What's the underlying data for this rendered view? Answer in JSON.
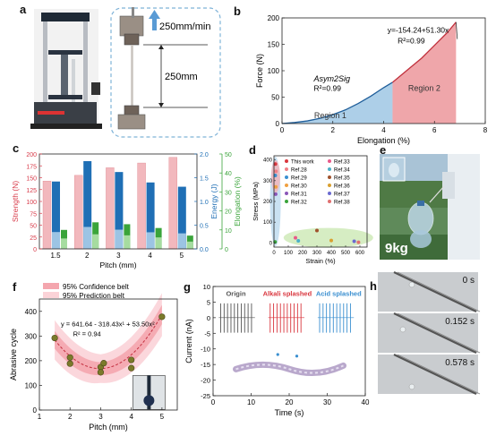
{
  "panel_labels": [
    "a",
    "b",
    "c",
    "d",
    "e",
    "f",
    "g",
    "h"
  ],
  "panel_a": {
    "speed_label": "250mm/min",
    "gauge_label": "250mm"
  },
  "colors": {
    "strength_red": "#d83b4a",
    "energy_blue": "#1f6fb5",
    "elongation_green": "#3aa43a",
    "region1_blue": "#6aa8d6",
    "region2_red": "#e46a72",
    "conf_band": "#f4a6ae",
    "pred_band": "#fbd3d8",
    "alkali_red": "#d9363e",
    "acid_blue": "#3a8fd0"
  },
  "chart_data": [
    {
      "panel": "b",
      "type": "area",
      "xlabel": "Elongation (%)",
      "ylabel": "Force (N)",
      "xlim": [
        0,
        8
      ],
      "ylim": [
        0,
        200
      ],
      "xticks": [
        "0",
        "2",
        "4",
        "6",
        "8"
      ],
      "yticks": [
        "0",
        "50",
        "100",
        "150",
        "200"
      ],
      "series": [
        {
          "name": "Region 1",
          "x": [
            0,
            0.5,
            1,
            1.5,
            2,
            2.5,
            3,
            3.5,
            4,
            4.35
          ],
          "y": [
            0,
            2,
            5,
            10,
            17,
            26,
            38,
            52,
            68,
            78
          ]
        },
        {
          "name": "Region 2",
          "x": [
            4.35,
            5,
            5.5,
            6,
            6.5,
            6.85
          ],
          "y": [
            78,
            104,
            124,
            148,
            172,
            192
          ]
        }
      ],
      "annotations": {
        "fit_eq": "y=-154.24+51.30x",
        "fit_r2": "R²=0.99",
        "model": "Asym2Sig",
        "model_r2": "R²=0.99"
      }
    },
    {
      "panel": "c",
      "type": "bar",
      "xlabel": "Pitch (mm)",
      "ylabel_left": "Strength (N)",
      "ylabel_mid": "Energy (J)",
      "ylabel_right": "Elongation (%)",
      "categories": [
        "1.5",
        "2",
        "3",
        "4",
        "5"
      ],
      "ylim_left": [
        0,
        200
      ],
      "ylim_mid": [
        0,
        2.0
      ],
      "ylim_right": [
        0,
        50
      ],
      "yticks_left": [
        "0",
        "25",
        "50",
        "75",
        "100",
        "125",
        "150",
        "175",
        "200"
      ],
      "yticks_mid": [
        "0.0",
        "0.5",
        "1.0",
        "1.5",
        "2.0"
      ],
      "yticks_right": [
        "0",
        "10",
        "20",
        "30",
        "40",
        "50"
      ],
      "series": [
        {
          "name": "Strength",
          "axis": "left",
          "values": [
            143,
            155,
            171,
            181,
            193
          ]
        },
        {
          "name": "Energy",
          "axis": "mid",
          "values": [
            1.42,
            1.85,
            1.62,
            1.4,
            1.31
          ]
        },
        {
          "name": "Elongation",
          "axis": "right",
          "values": [
            10,
            14,
            13,
            11,
            7
          ]
        }
      ]
    },
    {
      "panel": "d",
      "type": "scatter",
      "xlabel": "Strain (%)",
      "ylabel": "Stress (MPa)",
      "xlim": [
        0,
        650
      ],
      "ylim": [
        -20,
        420
      ],
      "xticks": [
        "0",
        "100",
        "200",
        "300",
        "400",
        "500",
        "600"
      ],
      "yticks": [
        "0",
        "100",
        "200",
        "300",
        "400"
      ],
      "legend": [
        "This work",
        "Ref.28",
        "Ref.29",
        "Ref.30",
        "Ref.31",
        "Ref.32",
        "Ref.33",
        "Ref.34",
        "Ref.35",
        "Ref.36",
        "Ref.37",
        "Ref.38"
      ],
      "points": [
        {
          "x": 10,
          "y": 380
        },
        {
          "x": 14,
          "y": 345
        },
        {
          "x": 9,
          "y": 325
        },
        {
          "x": 13,
          "y": 270
        },
        {
          "x": 12,
          "y": 235
        },
        {
          "x": 8,
          "y": 5
        },
        {
          "x": 150,
          "y": 25
        },
        {
          "x": 170,
          "y": 10
        },
        {
          "x": 300,
          "y": 60
        },
        {
          "x": 400,
          "y": 12
        },
        {
          "x": 560,
          "y": 8
        },
        {
          "x": 590,
          "y": 3
        }
      ]
    },
    {
      "panel": "f",
      "type": "scatter",
      "xlabel": "Pitch (mm)",
      "ylabel": "Abrasive cycle",
      "xlim": [
        1,
        5.5
      ],
      "ylim": [
        0,
        450
      ],
      "xticks": [
        "1",
        "2",
        "3",
        "4",
        "5"
      ],
      "yticks": [
        "0",
        "100",
        "200",
        "300",
        "400"
      ],
      "legend": [
        "95% Confidence belt",
        "95% Prediction belt"
      ],
      "fit_eq": "y = 641.64 - 318.43x¹ + 53.50x²",
      "fit_r2": "R² = 0.94",
      "points": [
        {
          "x": 1.5,
          "y": 292
        },
        {
          "x": 2,
          "y": 213
        },
        {
          "x": 2,
          "y": 188
        },
        {
          "x": 3,
          "y": 174
        },
        {
          "x": 3,
          "y": 153
        },
        {
          "x": 3.1,
          "y": 190
        },
        {
          "x": 4,
          "y": 203
        },
        {
          "x": 4,
          "y": 170
        },
        {
          "x": 5,
          "y": 378
        }
      ]
    },
    {
      "panel": "g",
      "type": "line",
      "xlabel": "Time (s)",
      "ylabel": "Current (nA)",
      "xlim": [
        0,
        40
      ],
      "ylim": [
        -25,
        10
      ],
      "xticks": [
        "0",
        "10",
        "20",
        "30",
        "40"
      ],
      "yticks": [
        "-25",
        "-20",
        "-15",
        "-10",
        "-5",
        "0",
        "5",
        "10"
      ],
      "labels": [
        "Origin",
        "Alkali splashed",
        "Acid splashed"
      ]
    }
  ],
  "panel_e": {
    "weight_label": "9kg"
  },
  "panel_h": {
    "times": [
      "0 s",
      "0.152 s",
      "0.578 s"
    ]
  }
}
